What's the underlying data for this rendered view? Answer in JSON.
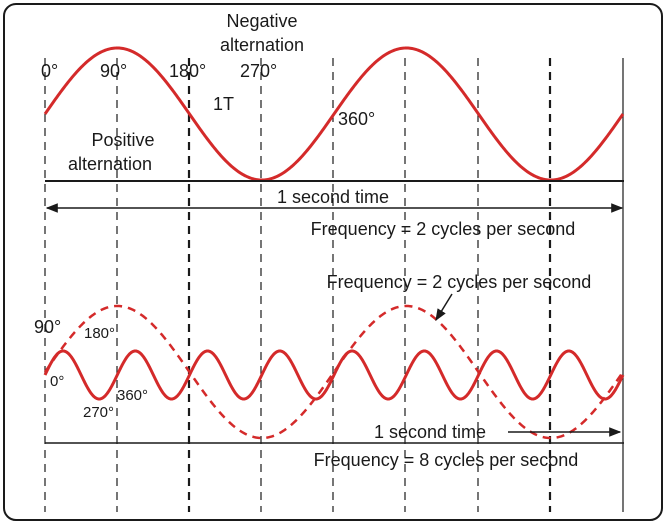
{
  "colors": {
    "wave": "#d42a2a",
    "ink": "#1a1a1a",
    "frame": "#1a1a1a",
    "background": "#ffffff"
  },
  "top_panel": {
    "negative_label_line1": "Negative",
    "negative_label_line2": "alternation",
    "positive_label_line1": "Positive",
    "positive_label_line2": "alternation",
    "angle_0": "0°",
    "angle_90": "90°",
    "angle_180": "180°",
    "angle_270": "270°",
    "angle_360": "360°",
    "period_label": "1T",
    "time_label": "1 second time",
    "frequency_label": "Frequency = 2 cycles per second",
    "cycles_in_one_second": 2
  },
  "bottom_panel": {
    "dashed_wave_label": "Frequency = 2 cycles per second",
    "angle_90": "90°",
    "angle_180": "180°",
    "angle_0": "0°",
    "angle_360": "360°",
    "angle_270": "270°",
    "time_label": "1 second time",
    "frequency_label": "Frequency = 8 cycles per second",
    "solid_cycles_in_one_second": 8,
    "dashed_cycles_in_one_second": 2
  }
}
